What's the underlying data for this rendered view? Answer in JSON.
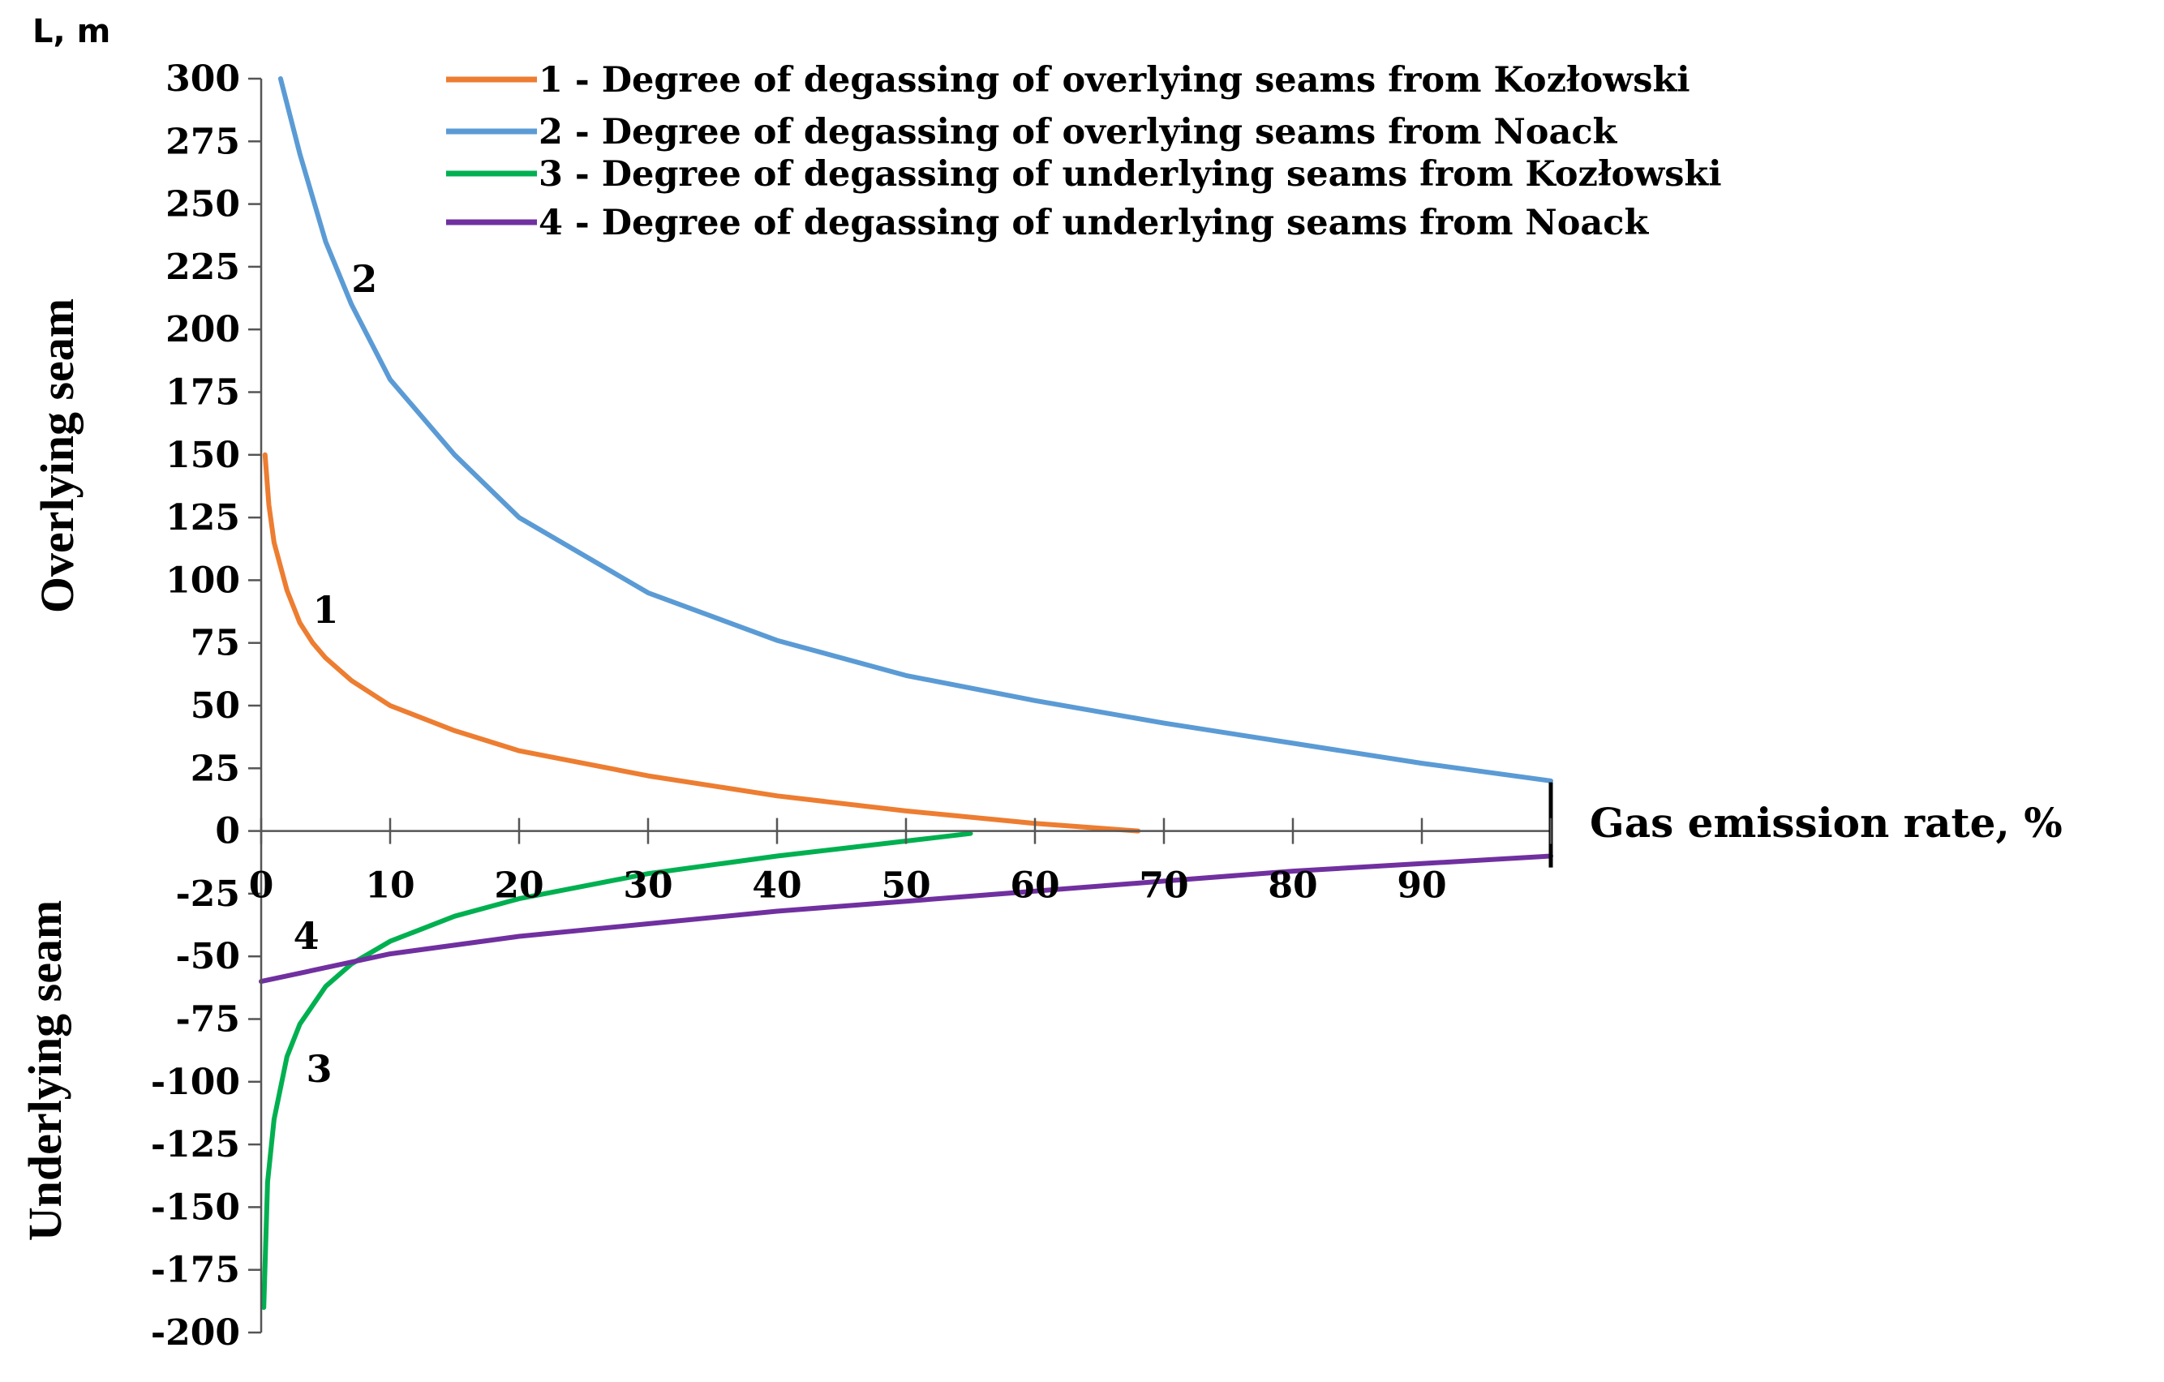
{
  "chart_data": {
    "type": "line",
    "y_units_label": "L, m",
    "xlabel": "Gas emission rate, %",
    "ylabel_upper": "Overlying seam",
    "ylabel_lower": "Underlying seam",
    "xlim": [
      0,
      100
    ],
    "ylim": [
      -200,
      300
    ],
    "x_ticks": [
      0,
      10,
      20,
      30,
      40,
      50,
      60,
      70,
      80,
      90,
      100
    ],
    "x_tick_labels": [
      "0",
      "10",
      "20",
      "30",
      "40",
      "50",
      "60",
      "70",
      "80",
      "90",
      ""
    ],
    "y_ticks": [
      300,
      275,
      250,
      225,
      200,
      175,
      150,
      125,
      100,
      75,
      50,
      25,
      0,
      -25,
      -50,
      -75,
      -100,
      -125,
      -150,
      -175,
      -200
    ],
    "y_tick_labels": [
      "300",
      "275",
      "250",
      "225",
      "200",
      "175",
      "150",
      "125",
      "100",
      "75",
      "50",
      "25",
      "0",
      "-25",
      "-50",
      "-75",
      "-100",
      "-125",
      "-150",
      "-175",
      "-200"
    ],
    "grid": false,
    "legend_position": "top",
    "series": [
      {
        "id": "1",
        "name": "1 -  Degree of degassing of overlying seams from Kozłowski",
        "color": "#ED7D31",
        "label_point": [
          5,
          83
        ],
        "points": [
          [
            0.3,
            150
          ],
          [
            0.6,
            130
          ],
          [
            1,
            115
          ],
          [
            2,
            96
          ],
          [
            3,
            83
          ],
          [
            4,
            75
          ],
          [
            5,
            69
          ],
          [
            7,
            60
          ],
          [
            10,
            50
          ],
          [
            15,
            40
          ],
          [
            20,
            32
          ],
          [
            30,
            22
          ],
          [
            40,
            14
          ],
          [
            50,
            8
          ],
          [
            60,
            3
          ],
          [
            68,
            0
          ]
        ]
      },
      {
        "id": "2",
        "name": "2 -  Degree of degassing of overlying seams from Noack",
        "color": "#5B9BD5",
        "label_point": [
          8,
          215
        ],
        "points": [
          [
            1.5,
            300
          ],
          [
            3,
            270
          ],
          [
            5,
            235
          ],
          [
            7,
            210
          ],
          [
            10,
            180
          ],
          [
            15,
            150
          ],
          [
            20,
            125
          ],
          [
            30,
            95
          ],
          [
            40,
            76
          ],
          [
            50,
            62
          ],
          [
            60,
            52
          ],
          [
            70,
            43
          ],
          [
            80,
            35
          ],
          [
            90,
            27
          ],
          [
            100,
            20
          ]
        ]
      },
      {
        "id": "3",
        "name": "3 - Degree of degassing of underlying seams from Kozłowski",
        "color": "#00B050",
        "label_point": [
          4.5,
          -100
        ],
        "points": [
          [
            0.2,
            -190
          ],
          [
            0.5,
            -140
          ],
          [
            1,
            -115
          ],
          [
            2,
            -90
          ],
          [
            3,
            -77
          ],
          [
            5,
            -62
          ],
          [
            7,
            -53
          ],
          [
            10,
            -44
          ],
          [
            15,
            -34
          ],
          [
            20,
            -27
          ],
          [
            30,
            -17
          ],
          [
            40,
            -10
          ],
          [
            50,
            -4
          ],
          [
            55,
            -1
          ]
        ]
      },
      {
        "id": "4",
        "name": "4 - Degree of degassing of underlying seams from Noack",
        "color": "#7030A0",
        "label_point": [
          3.5,
          -47
        ],
        "points": [
          [
            0,
            -60
          ],
          [
            10,
            -49
          ],
          [
            20,
            -42
          ],
          [
            30,
            -37
          ],
          [
            40,
            -32
          ],
          [
            50,
            -28
          ],
          [
            60,
            -24
          ],
          [
            70,
            -20
          ],
          [
            80,
            -16
          ],
          [
            90,
            -13
          ],
          [
            100,
            -10
          ]
        ]
      }
    ]
  }
}
